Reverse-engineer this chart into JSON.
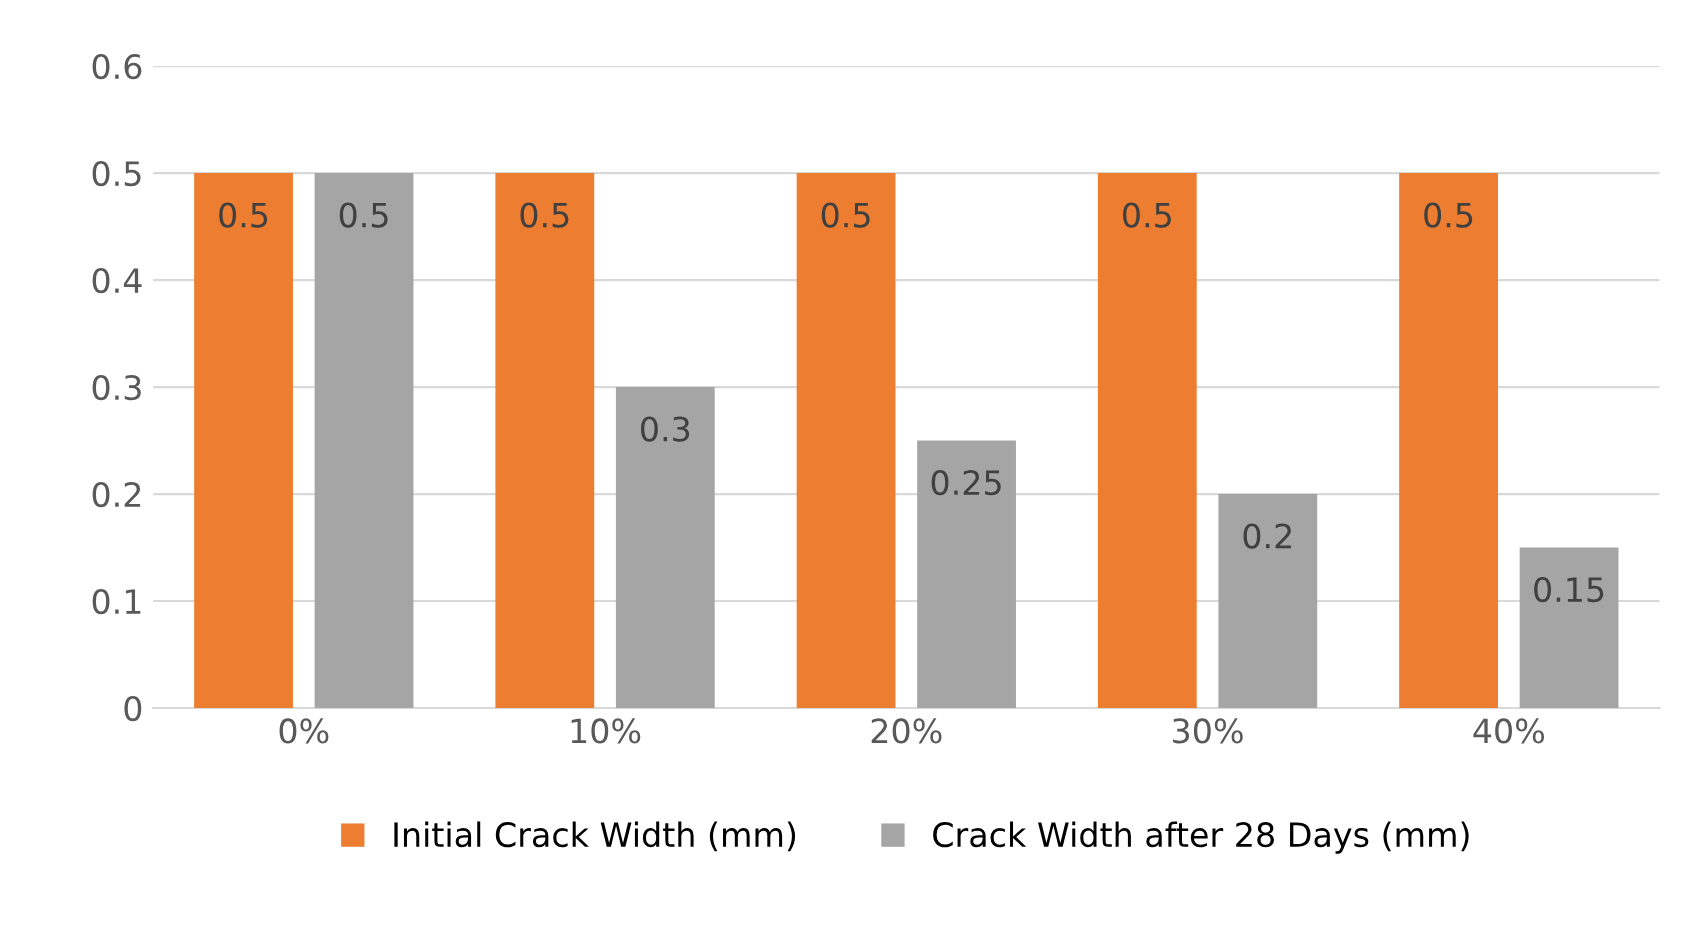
{
  "chart_data": {
    "type": "bar",
    "categories": [
      "0%",
      "10%",
      "20%",
      "30%",
      "40%"
    ],
    "series": [
      {
        "name": "Initial Crack Width (mm)",
        "color": "#ed7d31",
        "values": [
          0.5,
          0.5,
          0.5,
          0.5,
          0.5
        ]
      },
      {
        "name": "Crack Width after 28 Days (mm)",
        "color": "#a5a5a5",
        "values": [
          0.5,
          0.3,
          0.25,
          0.2,
          0.15
        ]
      }
    ],
    "ylim": [
      0,
      0.6
    ],
    "yticks": [
      0,
      0.1,
      0.2,
      0.3,
      0.4,
      0.5,
      0.6
    ],
    "grid": "y",
    "legend": "bottom",
    "data_labels": true
  }
}
